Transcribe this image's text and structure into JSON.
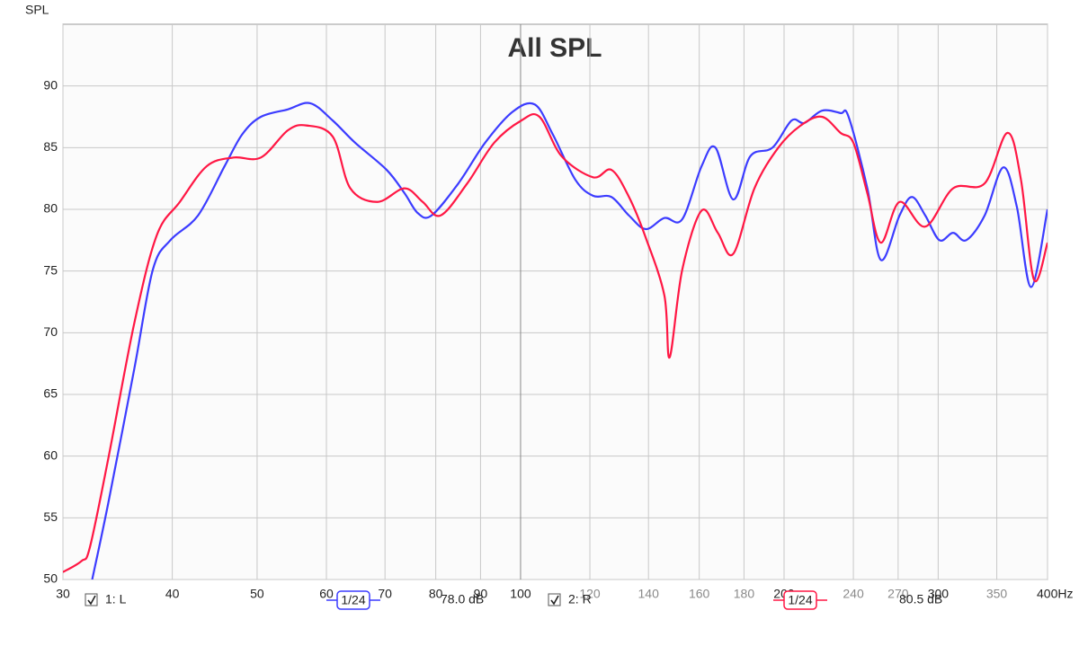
{
  "chart_data": {
    "type": "line",
    "title": "All SPL",
    "y_label": "SPL",
    "x_log": true,
    "grid": true,
    "xlim": [
      30,
      400
    ],
    "ylim": [
      50,
      95
    ],
    "yticks": [
      50,
      55,
      60,
      65,
      70,
      75,
      80,
      85,
      90
    ],
    "xticks": [
      30,
      40,
      50,
      60,
      70,
      80,
      90,
      100,
      200,
      300,
      {
        "value": 400,
        "label": "400Hz"
      }
    ],
    "xticks_minor": [
      120,
      140,
      160,
      180,
      240,
      270,
      350
    ],
    "series": [
      {
        "name": "1: L",
        "color": "#3c3cff",
        "smoothing": "1/24",
        "readout": "78.0 dB",
        "x": [
          32.4,
          33.8,
          36.2,
          38,
          39.8,
          42.8,
          45.9,
          48.1,
          50.5,
          54.2,
          57.5,
          61,
          64.7,
          70.3,
          73.7,
          76.3,
          79.1,
          84.9,
          91.1,
          97.9,
          103.8,
          108.8,
          115.5,
          121,
          127,
          133,
          139,
          146,
          153,
          161,
          167,
          175,
          183,
          194,
          204,
          211,
          221,
          232,
          237,
          249,
          258,
          271,
          280,
          290,
          301,
          312,
          323,
          339,
          356,
          369,
          383,
          400
        ],
        "values": [
          50,
          56.2,
          67.1,
          75.1,
          77.5,
          79.5,
          83.5,
          86.1,
          87.5,
          88.1,
          88.6,
          87.2,
          85.4,
          83.2,
          81.3,
          79.7,
          79.5,
          82.1,
          85.4,
          87.9,
          88.5,
          86.1,
          82.4,
          81.1,
          81,
          79.5,
          78.4,
          79.3,
          79.2,
          83.5,
          85,
          80.8,
          84.3,
          85,
          87.2,
          87,
          88,
          87.8,
          87.5,
          81.7,
          75.9,
          79.5,
          81,
          79.5,
          77.5,
          78.1,
          77.5,
          79.5,
          83.4,
          80.2,
          73.7,
          80
        ]
      },
      {
        "name": "2: R",
        "color": "#ff1744",
        "smoothing": "1/24",
        "readout": "80.5 dB",
        "x": [
          30,
          31.5,
          32.2,
          33.8,
          36.2,
          38.4,
          40.8,
          43.8,
          47,
          50.5,
          54.2,
          56.9,
          61,
          63.9,
          68.6,
          73.7,
          77.3,
          81,
          86.9,
          93.3,
          100.2,
          105.1,
          111.4,
          121,
          127,
          133,
          139,
          146,
          148,
          153,
          161,
          168,
          175,
          185,
          197,
          209,
          221,
          232,
          240,
          249,
          258,
          271,
          290,
          312,
          339,
          360,
          373,
          386,
          400
        ],
        "values": [
          50.6,
          51.5,
          52.6,
          59.8,
          70.8,
          77.9,
          80.6,
          83.5,
          84.2,
          84.2,
          86.4,
          86.8,
          85.9,
          81.7,
          80.6,
          81.7,
          80.6,
          79.5,
          82.1,
          85.4,
          87.2,
          87.5,
          84.3,
          82.6,
          83.2,
          81,
          77.7,
          73,
          68,
          75.1,
          79.9,
          78.1,
          76.4,
          81.7,
          85,
          86.8,
          87.5,
          86.2,
          85.4,
          81.3,
          77.3,
          80.6,
          78.6,
          81.7,
          82.1,
          86.2,
          82.4,
          74.3,
          77.3
        ]
      }
    ]
  }
}
